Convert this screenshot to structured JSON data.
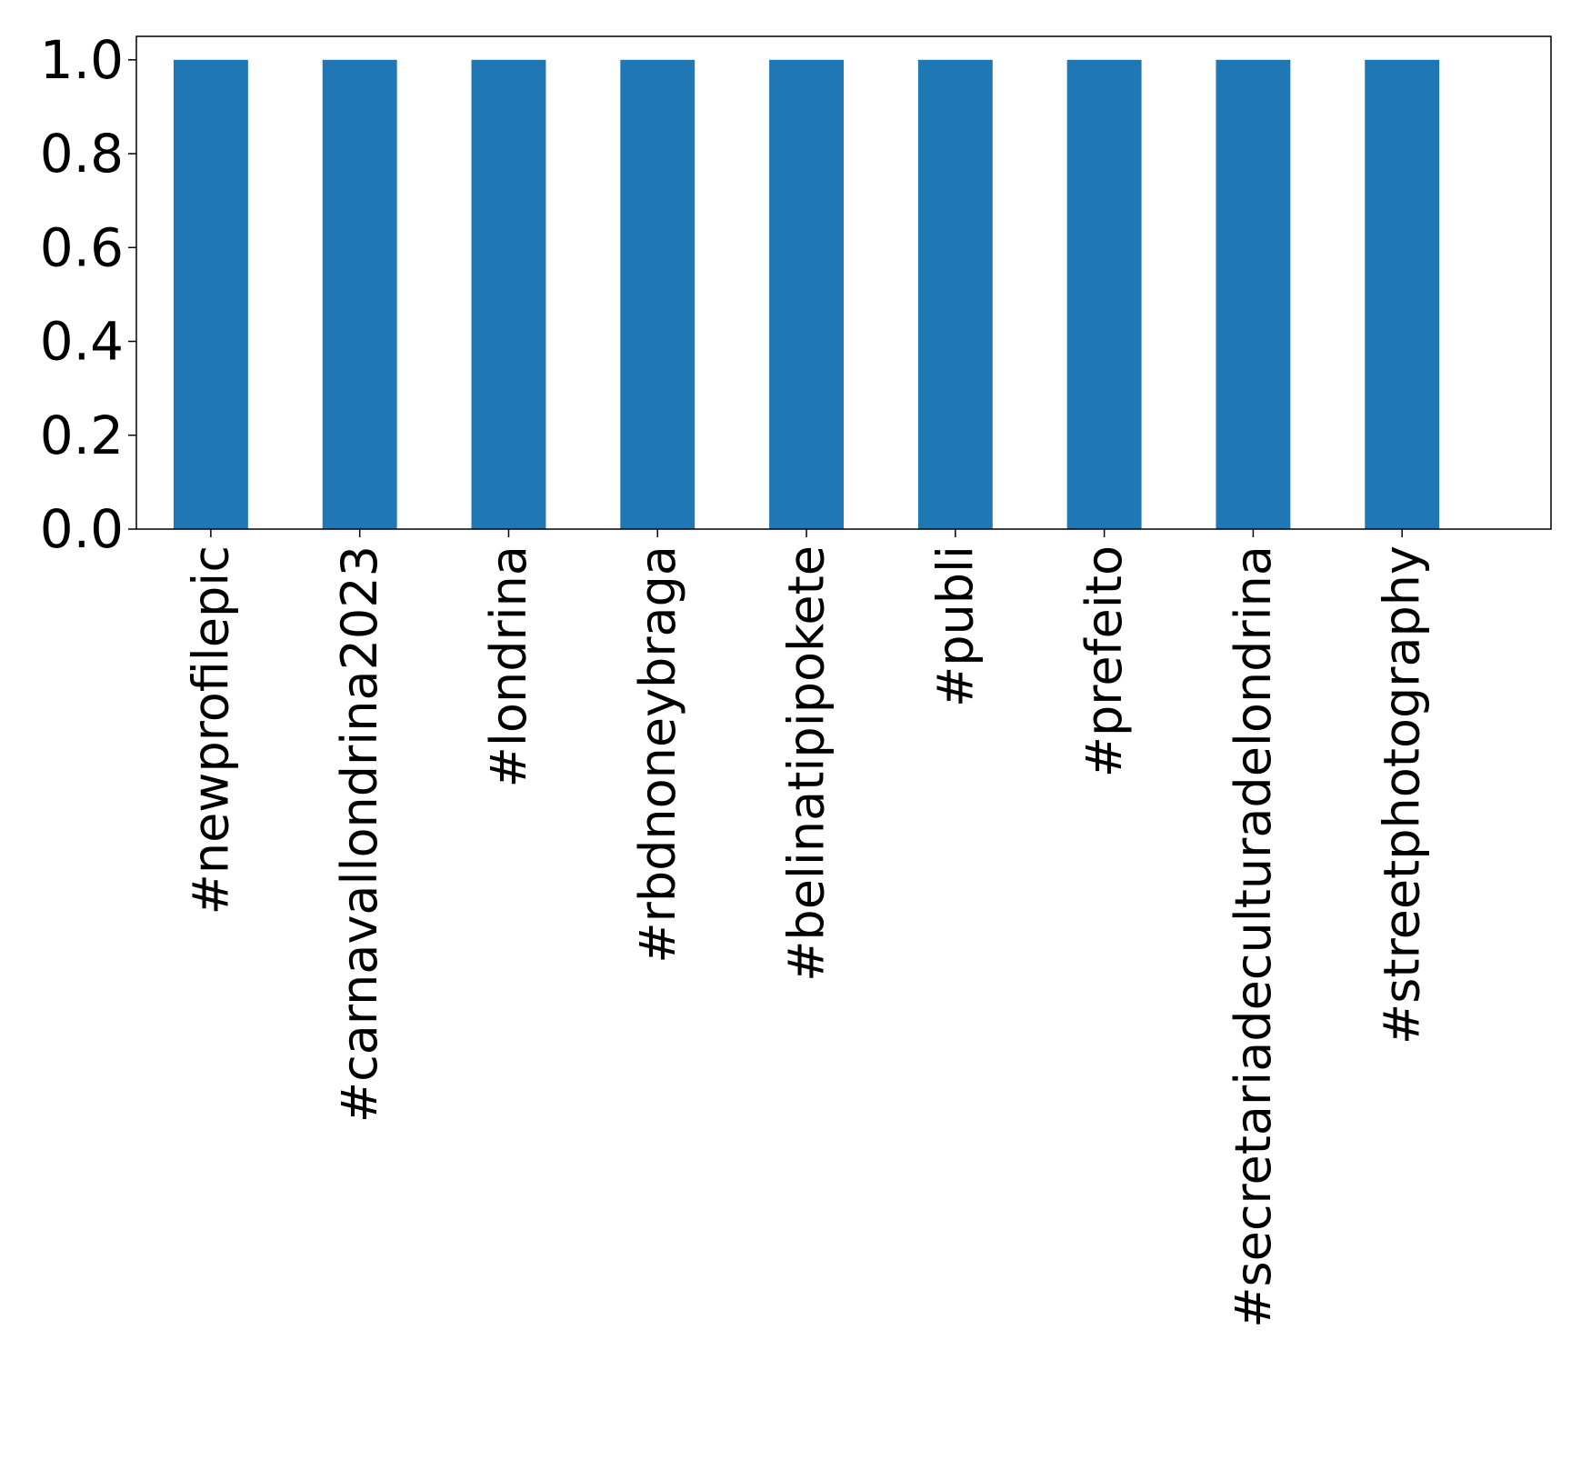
{
  "chart_data": {
    "type": "bar",
    "title": "",
    "xlabel": "",
    "ylabel": "",
    "categories": [
      "#newprofilepic",
      "#carnavallondrina2023",
      "#londrina",
      "#rbdnoneybraga",
      "#belinatipipokete",
      "#publi",
      "#prefeito",
      "#secretariadeculturadelondrina",
      "#streetphotography"
    ],
    "values": [
      1.0,
      1.0,
      1.0,
      1.0,
      1.0,
      1.0,
      1.0,
      1.0,
      1.0
    ],
    "ylim": [
      0.0,
      1.05
    ],
    "yticks": [
      "0.0",
      "0.2",
      "0.4",
      "0.6",
      "0.8",
      "1.0"
    ],
    "grid": false,
    "legend": "none",
    "bar_color": "#1f77b4"
  }
}
